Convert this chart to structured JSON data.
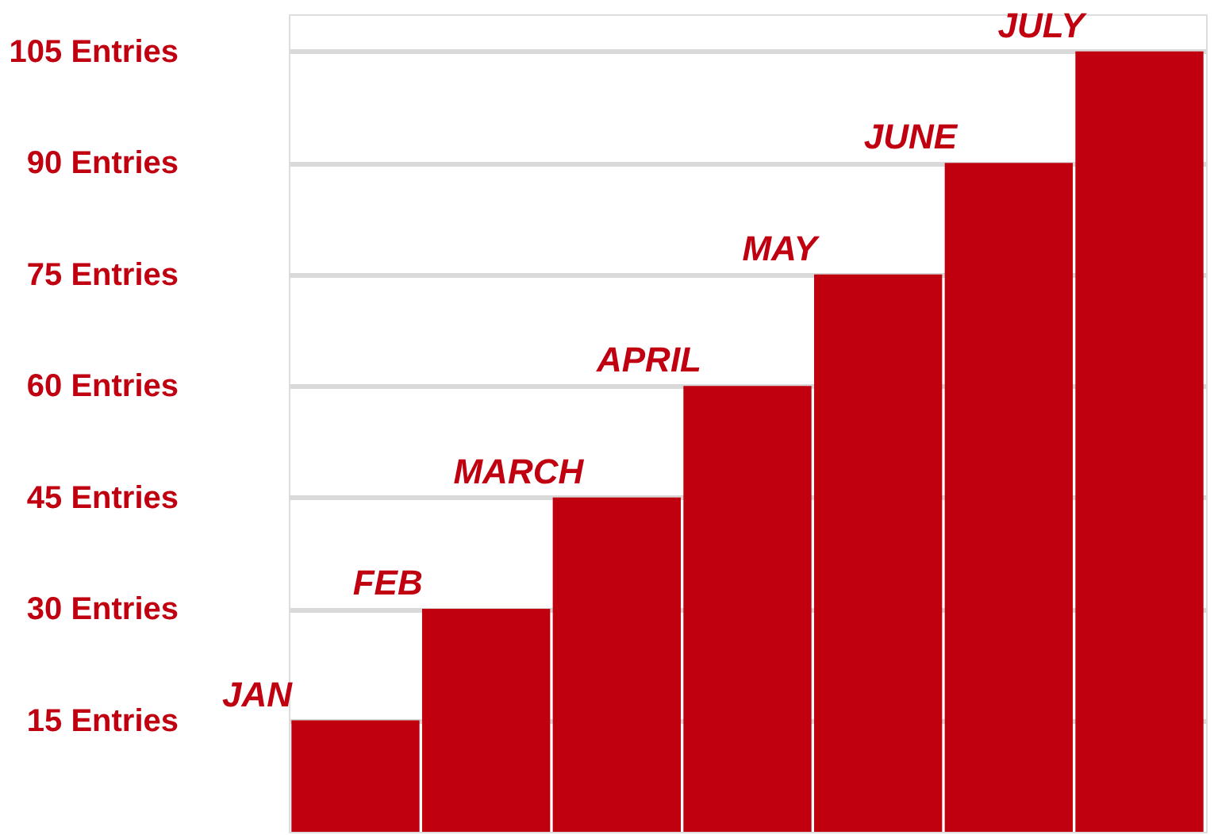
{
  "chart_data": {
    "type": "bar",
    "categories": [
      null,
      null,
      null,
      null,
      null,
      null,
      null
    ],
    "values": [
      15,
      30,
      45,
      60,
      75,
      90,
      105
    ],
    "color": "#c0000f",
    "ylim": [
      0,
      110
    ],
    "yticks": [
      {
        "value": 15,
        "label": "15 Entries"
      },
      {
        "value": 30,
        "label": "30 Entries"
      },
      {
        "value": 45,
        "label": "45 Entries"
      },
      {
        "value": 60,
        "label": "60 Entries"
      },
      {
        "value": 75,
        "label": "75 Entries"
      },
      {
        "value": 90,
        "label": "90 Entries"
      },
      {
        "value": 105,
        "label": "105 Entries"
      }
    ],
    "grid": "y",
    "annotations": [
      "JAN",
      "FEB",
      "MARCH",
      "APRIL",
      "MAY",
      "JUNE",
      "JULY"
    ]
  }
}
